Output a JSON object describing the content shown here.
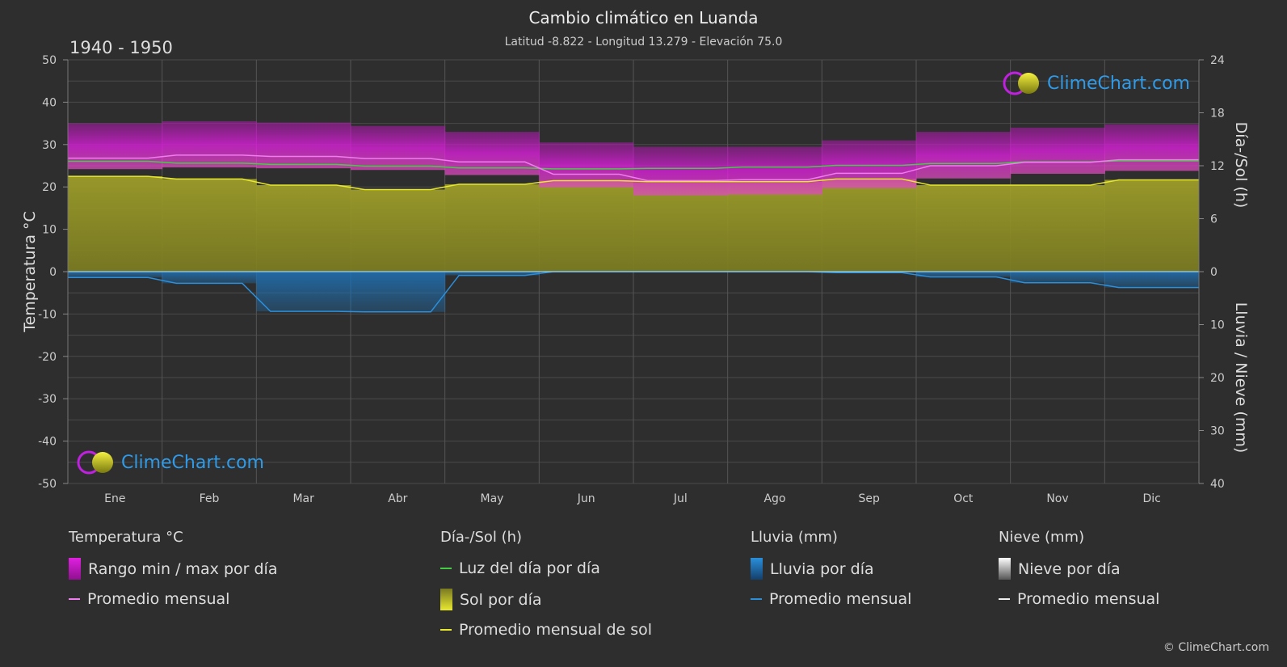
{
  "header": {
    "title": "Cambio climático en Luanda",
    "subtitle": "Latitud -8.822 - Longitud 13.279 - Elevación 75.0",
    "period": "1940 - 1950"
  },
  "brand": {
    "logo_text": "ClimeChart.com",
    "copyright": "© ClimeChart.com"
  },
  "chart_data": {
    "type": "area",
    "categories": [
      "Ene",
      "Feb",
      "Mar",
      "Abr",
      "May",
      "Jun",
      "Jul",
      "Ago",
      "Sep",
      "Oct",
      "Nov",
      "Dic"
    ],
    "axes": {
      "left": {
        "label": "Temperatura °C",
        "range": [
          -50,
          50
        ],
        "ticks": [
          50,
          40,
          30,
          20,
          10,
          0,
          -10,
          -20,
          -30,
          -40,
          -50
        ]
      },
      "right_top": {
        "label": "Día-/Sol (h)",
        "range": [
          0,
          24
        ],
        "ticks": [
          24,
          18,
          12,
          6,
          0
        ]
      },
      "right_bottom": {
        "label": "Lluvia / Nieve (mm)",
        "range": [
          0,
          40
        ],
        "ticks": [
          0,
          10,
          20,
          30,
          40
        ]
      }
    },
    "grid": true,
    "series": [
      {
        "name": "Promedio mensual",
        "group": "temperature",
        "color": "#f07cf0",
        "values": [
          26.8,
          27.5,
          27.2,
          26.7,
          25.9,
          23.0,
          21.5,
          21.7,
          23.2,
          25.0,
          25.8,
          26.4
        ]
      },
      {
        "name": "Rango min / max por día",
        "group": "temperature",
        "color": "#d020d0",
        "min": [
          24.2,
          24.6,
          24.4,
          24.0,
          22.8,
          19.9,
          18.0,
          18.2,
          19.7,
          22.0,
          23.1,
          23.8
        ],
        "max": [
          35.0,
          35.5,
          35.2,
          34.4,
          33.0,
          30.5,
          29.5,
          29.5,
          31.0,
          33.0,
          34.0,
          34.8
        ]
      },
      {
        "name": "Luz del día por día",
        "group": "sun",
        "color": "#44cc44",
        "values": [
          12.5,
          12.3,
          12.15,
          11.95,
          11.75,
          11.65,
          11.7,
          11.85,
          12.05,
          12.25,
          12.45,
          12.55
        ]
      },
      {
        "name": "Sol por día",
        "group": "sun",
        "color": "#b8b82a",
        "values": [
          10.8,
          10.5,
          9.8,
          9.3,
          9.9,
          10.3,
          10.2,
          10.2,
          10.5,
          9.8,
          9.8,
          10.4
        ]
      },
      {
        "name": "Promedio mensual de sol",
        "group": "sun",
        "color": "#e8e830",
        "values": [
          10.8,
          10.5,
          9.8,
          9.3,
          9.9,
          10.3,
          10.2,
          10.2,
          10.5,
          9.8,
          9.8,
          10.4
        ]
      },
      {
        "name": "Lluvia por día",
        "group": "rain",
        "color": "#1f6fb0",
        "values": [
          1.1,
          2.2,
          7.5,
          7.6,
          0.7,
          0.0,
          0.0,
          0.0,
          0.2,
          1.0,
          2.1,
          3.0
        ]
      },
      {
        "name": "Promedio mensual",
        "group": "rain",
        "color": "#2a8fdc",
        "values": [
          1.1,
          2.2,
          7.5,
          7.6,
          0.7,
          0.0,
          0.0,
          0.0,
          0.2,
          1.0,
          2.1,
          3.0
        ]
      },
      {
        "name": "Nieve por día",
        "group": "snow",
        "color": "#cccccc",
        "values": [
          0,
          0,
          0,
          0,
          0,
          0,
          0,
          0,
          0,
          0,
          0,
          0
        ]
      },
      {
        "name": "Promedio mensual",
        "group": "snow",
        "color": "#eeeeee",
        "values": [
          0,
          0,
          0,
          0,
          0,
          0,
          0,
          0,
          0,
          0,
          0,
          0
        ]
      }
    ]
  },
  "legend": {
    "groups": [
      {
        "heading": "Temperatura °C",
        "items": [
          {
            "label": "Rango min / max por día",
            "icon": "range-swatch",
            "color": "#e020e0"
          },
          {
            "label": "Promedio mensual",
            "icon": "line-swatch",
            "color": "#f07cf0"
          }
        ]
      },
      {
        "heading": "Día-/Sol (h)",
        "items": [
          {
            "label": "Luz del día por día",
            "icon": "line-swatch",
            "color": "#44cc44"
          },
          {
            "label": "Sol por día",
            "icon": "sun-swatch",
            "color": "#d8d830"
          },
          {
            "label": "Promedio mensual de sol",
            "icon": "line-swatch",
            "color": "#e8e830"
          }
        ]
      },
      {
        "heading": "Lluvia (mm)",
        "items": [
          {
            "label": "Lluvia por día",
            "icon": "rain-swatch",
            "color": "#2a8fdc"
          },
          {
            "label": "Promedio mensual",
            "icon": "line-swatch",
            "color": "#2a8fdc"
          }
        ]
      },
      {
        "heading": "Nieve (mm)",
        "items": [
          {
            "label": "Nieve por día",
            "icon": "snow-swatch",
            "color": "#dddddd"
          },
          {
            "label": "Promedio mensual",
            "icon": "line-swatch",
            "color": "#eeeeee"
          }
        ]
      }
    ]
  }
}
